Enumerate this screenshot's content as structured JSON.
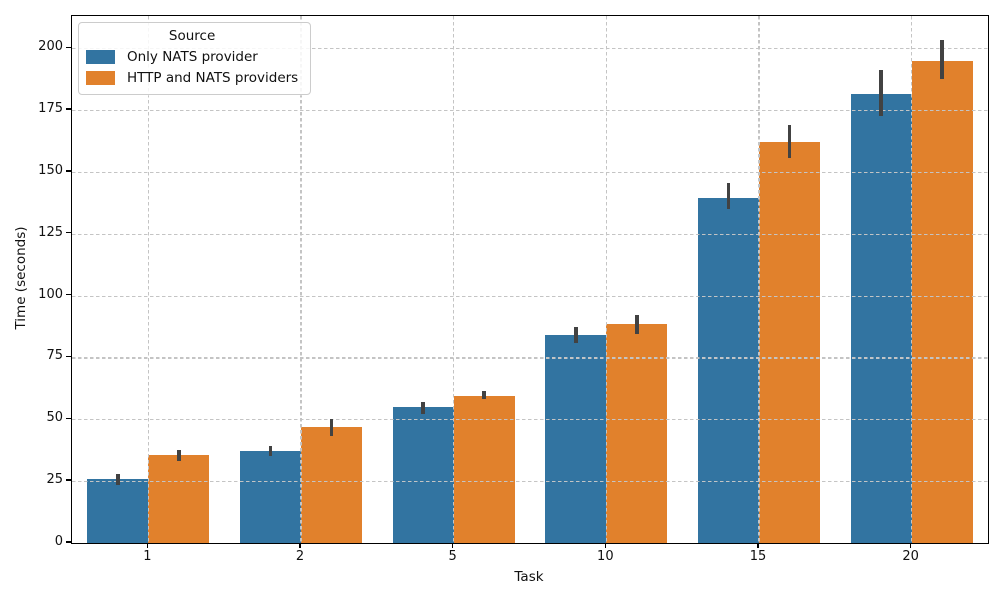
{
  "chart_data": {
    "type": "bar",
    "title": "",
    "xlabel": "Task",
    "ylabel": "Time (seconds)",
    "categories": [
      "1",
      "2",
      "5",
      "10",
      "15",
      "20"
    ],
    "series": [
      {
        "name": "Only NATS provider",
        "color": "#3274a1",
        "values": [
          26,
          37.3,
          54.8,
          84,
          139.5,
          181.5
        ],
        "ci_low": [
          23.5,
          35,
          52,
          81,
          135,
          172.5
        ],
        "ci_high": [
          28,
          39.3,
          57,
          87.5,
          145.5,
          191
        ]
      },
      {
        "name": "HTTP and NATS providers",
        "color": "#e1812c",
        "values": [
          35.4,
          47,
          59.4,
          88.5,
          162,
          195
        ],
        "ci_low": [
          33,
          43.2,
          58,
          84.5,
          155.5,
          187.5
        ],
        "ci_high": [
          37.5,
          50,
          61.4,
          92,
          169,
          203.5
        ]
      }
    ],
    "ylim": [
      0,
      213
    ],
    "yticks": [
      0,
      25,
      50,
      75,
      100,
      125,
      150,
      175,
      200
    ],
    "legend": {
      "title": "Source",
      "position": "upper left"
    },
    "grid": {
      "axis": "both",
      "style": "dashed"
    },
    "error_bar_color": "#424242"
  }
}
